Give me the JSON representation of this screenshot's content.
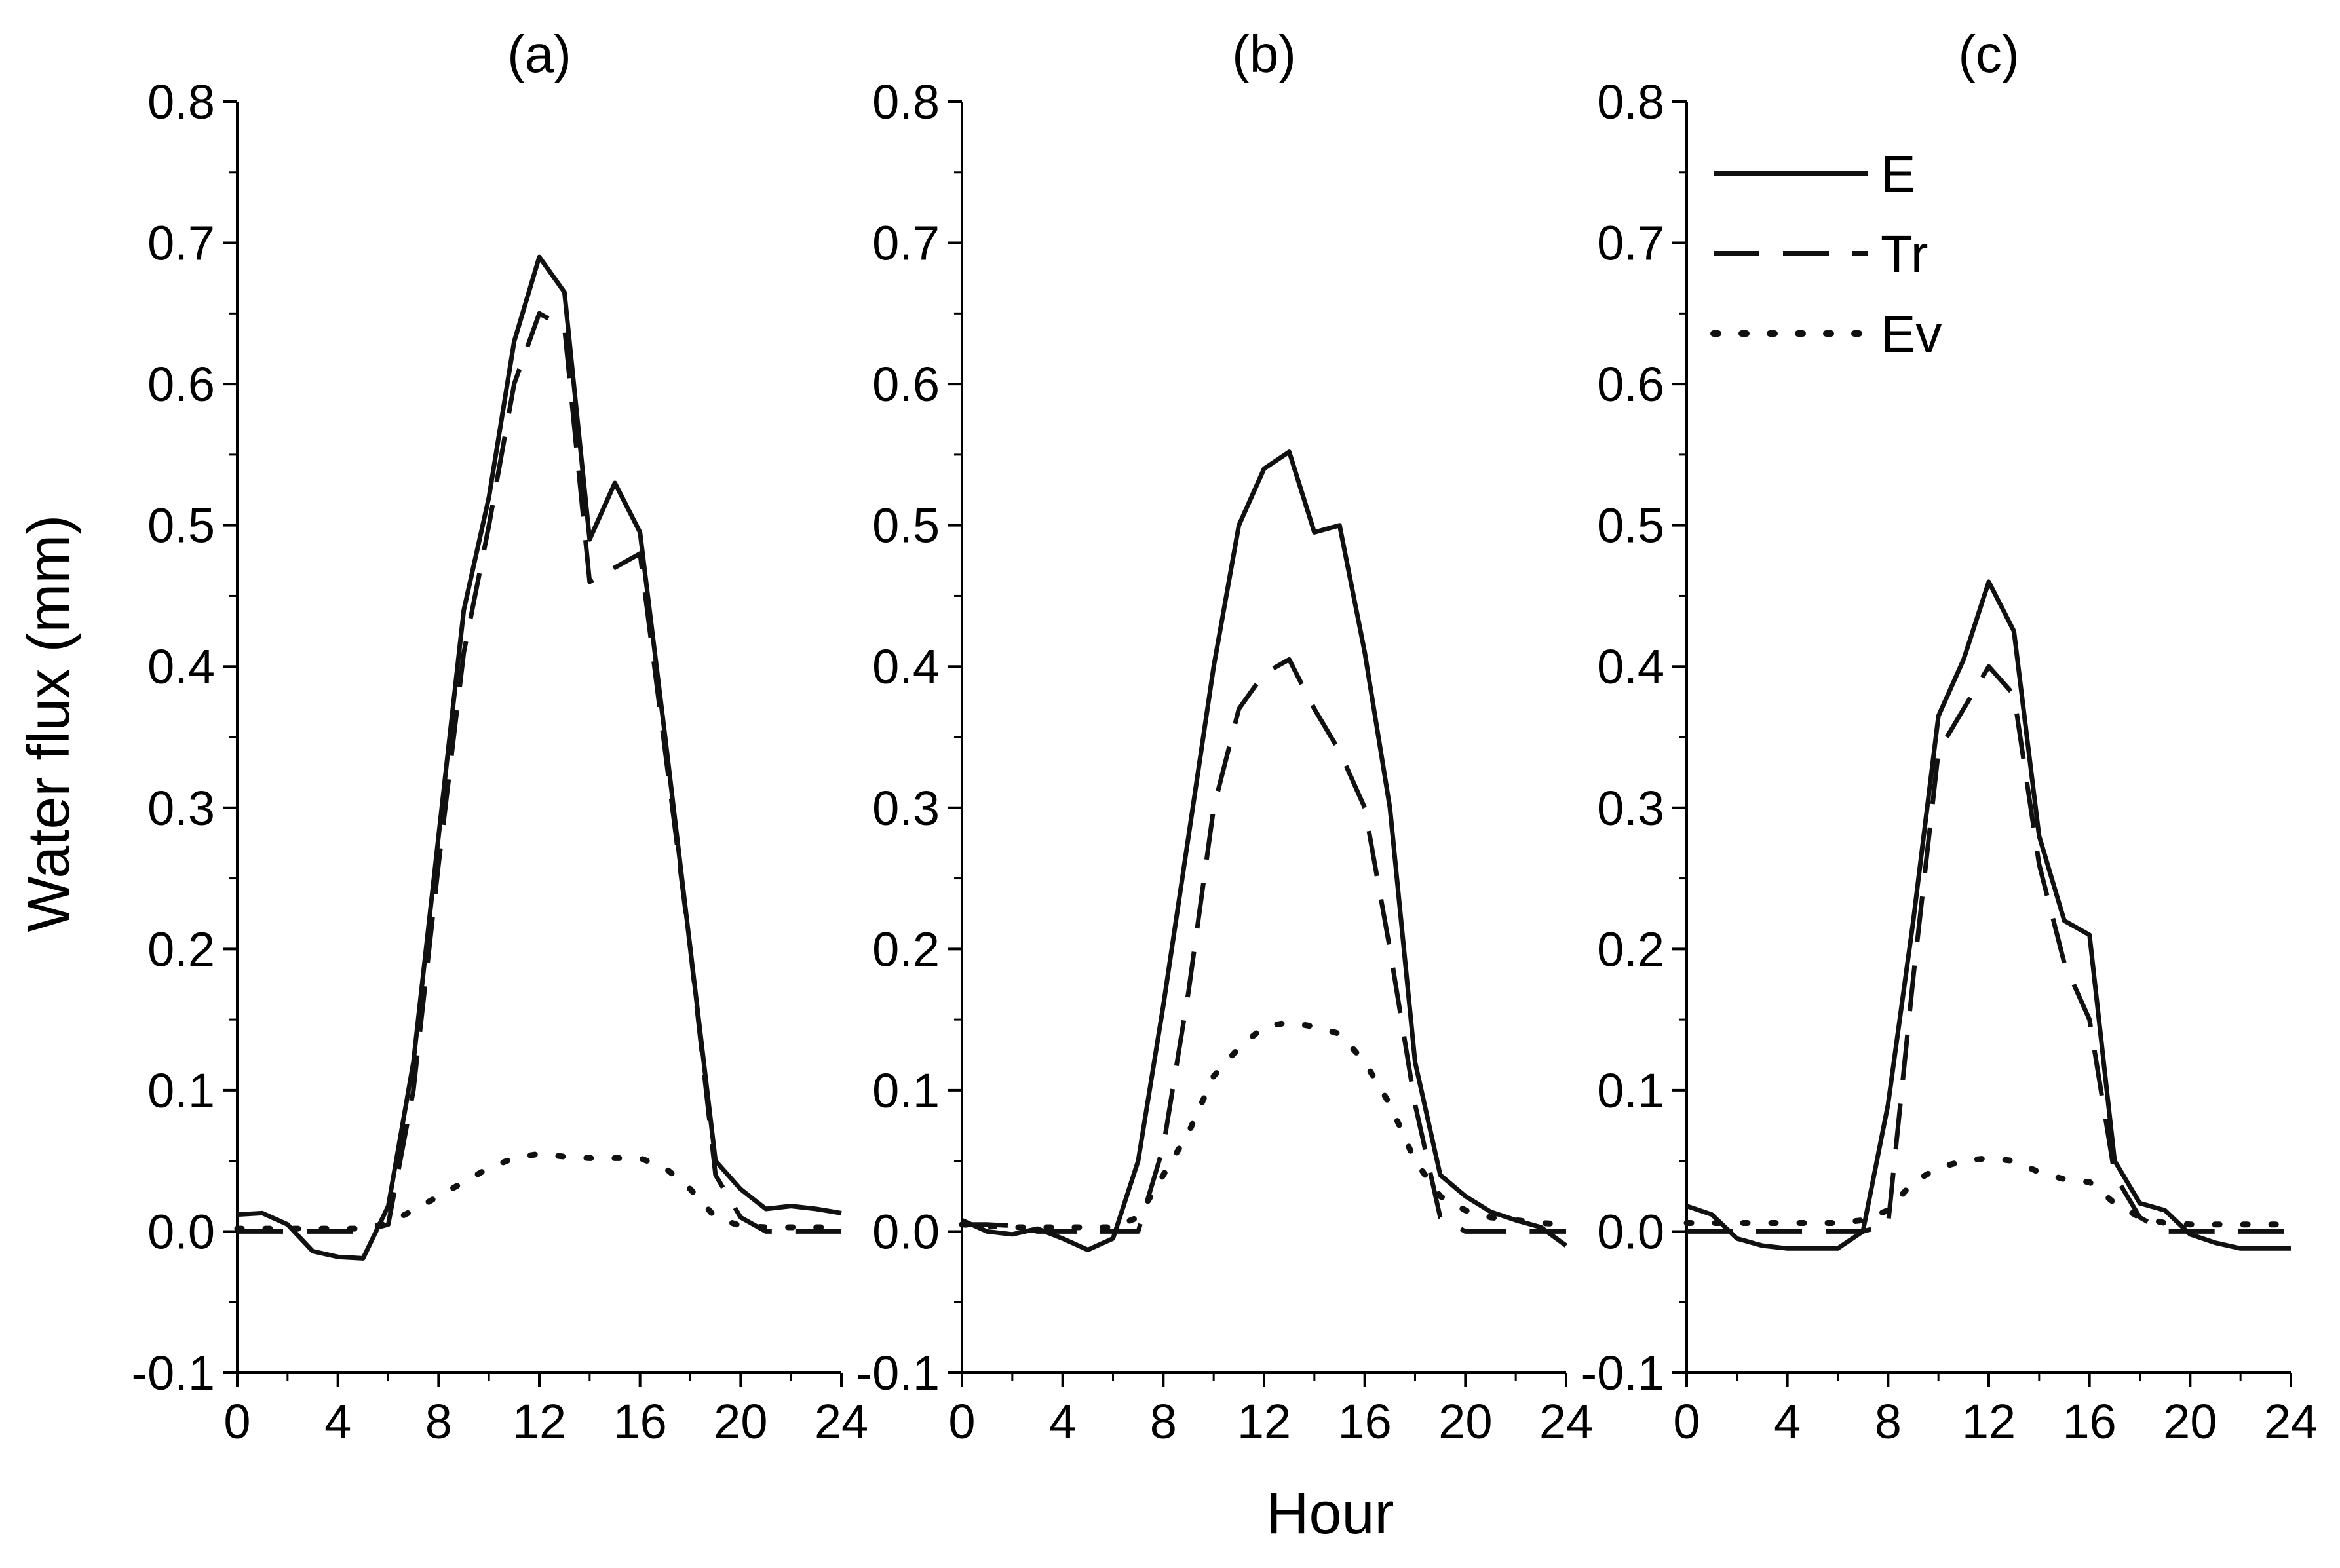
{
  "figure": {
    "xlabel": "Hour",
    "ylabel": "Water flux (mm)"
  },
  "legend": {
    "entries": [
      {
        "label": "E",
        "style": "solid"
      },
      {
        "label": "Tr",
        "style": "dashed"
      },
      {
        "label": "Ev",
        "style": "dotted"
      }
    ],
    "location": "top-left of panel (c)"
  },
  "chart_data": [
    {
      "type": "line",
      "title": "(a)",
      "xlabel": "Hour",
      "ylabel": "Water flux (mm)",
      "xlim": [
        0,
        24
      ],
      "ylim": [
        -0.1,
        0.8
      ],
      "xticks": [
        "0",
        "4",
        "8",
        "12",
        "16",
        "20",
        "24"
      ],
      "yticks": [
        "-0.1",
        "0.0",
        "0.1",
        "0.2",
        "0.3",
        "0.4",
        "0.5",
        "0.6",
        "0.7",
        "0.8"
      ],
      "series": [
        {
          "name": "E",
          "style": "solid",
          "x": [
            0,
            1,
            2,
            3,
            4,
            5,
            6,
            7,
            8,
            9,
            10,
            11,
            12,
            13,
            14,
            15,
            16,
            17,
            18,
            19,
            20,
            21,
            22,
            23,
            24
          ],
          "y": [
            0.012,
            0.013,
            0.005,
            -0.014,
            -0.018,
            -0.019,
            0.018,
            0.12,
            0.28,
            0.44,
            0.52,
            0.63,
            0.69,
            0.665,
            0.49,
            0.53,
            0.495,
            0.35,
            0.2,
            0.05,
            0.03,
            0.016,
            0.018,
            0.016,
            0.013
          ]
        },
        {
          "name": "Tr",
          "style": "dashed",
          "x": [
            0,
            1,
            2,
            3,
            4,
            5,
            6,
            7,
            8,
            9,
            10,
            11,
            12,
            13,
            14,
            15,
            16,
            17,
            18,
            19,
            20,
            21,
            22,
            23,
            24
          ],
          "y": [
            0.0,
            0.0,
            0.0,
            0.0,
            0.0,
            0.0,
            0.005,
            0.1,
            0.26,
            0.41,
            0.5,
            0.6,
            0.65,
            0.64,
            0.46,
            0.47,
            0.48,
            0.34,
            0.2,
            0.04,
            0.01,
            0.0,
            0.0,
            0.0,
            0.0
          ]
        },
        {
          "name": "Ev",
          "style": "dotted",
          "x": [
            0,
            1,
            2,
            3,
            4,
            5,
            6,
            7,
            8,
            9,
            10,
            11,
            12,
            13,
            14,
            15,
            16,
            17,
            18,
            19,
            20,
            21,
            22,
            23,
            24
          ],
          "y": [
            0.002,
            0.002,
            0.002,
            0.002,
            0.002,
            0.002,
            0.006,
            0.015,
            0.025,
            0.035,
            0.045,
            0.052,
            0.055,
            0.053,
            0.052,
            0.052,
            0.052,
            0.045,
            0.03,
            0.01,
            0.004,
            0.003,
            0.003,
            0.003,
            0.003
          ]
        }
      ]
    },
    {
      "type": "line",
      "title": "(b)",
      "xlabel": "Hour",
      "ylabel": "Water flux (mm)",
      "xlim": [
        0,
        24
      ],
      "ylim": [
        -0.1,
        0.8
      ],
      "xticks": [
        "0",
        "4",
        "8",
        "12",
        "16",
        "20",
        "24"
      ],
      "yticks": [
        "-0.1",
        "0.0",
        "0.1",
        "0.2",
        "0.3",
        "0.4",
        "0.5",
        "0.6",
        "0.7",
        "0.8"
      ],
      "series": [
        {
          "name": "E",
          "style": "solid",
          "x": [
            0,
            1,
            2,
            3,
            4,
            5,
            6,
            7,
            8,
            9,
            10,
            11,
            12,
            13,
            14,
            15,
            16,
            17,
            18,
            19,
            20,
            21,
            22,
            23,
            24
          ],
          "y": [
            0.008,
            0.0,
            -0.002,
            0.002,
            -0.005,
            -0.013,
            -0.005,
            0.05,
            0.16,
            0.28,
            0.4,
            0.5,
            0.54,
            0.552,
            0.495,
            0.5,
            0.41,
            0.3,
            0.12,
            0.04,
            0.025,
            0.014,
            0.008,
            0.003,
            -0.01
          ]
        },
        {
          "name": "Tr",
          "style": "dashed",
          "x": [
            0,
            1,
            2,
            3,
            4,
            5,
            6,
            7,
            8,
            9,
            10,
            11,
            12,
            13,
            14,
            15,
            16,
            17,
            18,
            19,
            20,
            21,
            22,
            23,
            24
          ],
          "y": [
            0.005,
            0.005,
            0.004,
            0.0,
            0.0,
            0.0,
            0.0,
            0.0,
            0.06,
            0.17,
            0.3,
            0.37,
            0.395,
            0.405,
            0.37,
            0.34,
            0.3,
            0.2,
            0.09,
            0.01,
            0.0,
            0.0,
            0.0,
            0.0,
            0.0
          ]
        },
        {
          "name": "Ev",
          "style": "dotted",
          "x": [
            0,
            1,
            2,
            3,
            4,
            5,
            6,
            7,
            8,
            9,
            10,
            11,
            12,
            13,
            14,
            15,
            16,
            17,
            18,
            19,
            20,
            21,
            22,
            23,
            24
          ],
          "y": [
            0.005,
            0.004,
            0.003,
            0.003,
            0.003,
            0.003,
            0.003,
            0.01,
            0.04,
            0.07,
            0.11,
            0.13,
            0.145,
            0.148,
            0.145,
            0.14,
            0.12,
            0.09,
            0.05,
            0.025,
            0.015,
            0.01,
            0.008,
            0.006,
            0.005
          ]
        }
      ]
    },
    {
      "type": "line",
      "title": "(c)",
      "xlabel": "Hour",
      "ylabel": "Water flux (mm)",
      "xlim": [
        0,
        24
      ],
      "ylim": [
        -0.1,
        0.8
      ],
      "xticks": [
        "0",
        "4",
        "8",
        "12",
        "16",
        "20",
        "24"
      ],
      "yticks": [
        "-0.1",
        "0.0",
        "0.1",
        "0.2",
        "0.3",
        "0.4",
        "0.5",
        "0.6",
        "0.7",
        "0.8"
      ],
      "series": [
        {
          "name": "E",
          "style": "solid",
          "x": [
            0,
            1,
            2,
            3,
            4,
            5,
            6,
            7,
            8,
            9,
            10,
            11,
            12,
            13,
            14,
            15,
            16,
            17,
            18,
            19,
            20,
            21,
            22,
            23,
            24
          ],
          "y": [
            0.018,
            0.012,
            -0.005,
            -0.01,
            -0.012,
            -0.012,
            -0.012,
            0.0,
            0.09,
            0.22,
            0.365,
            0.405,
            0.46,
            0.425,
            0.28,
            0.22,
            0.21,
            0.05,
            0.02,
            0.015,
            -0.002,
            -0.008,
            -0.012,
            -0.012,
            -0.012
          ]
        },
        {
          "name": "Tr",
          "style": "dashed",
          "x": [
            0,
            1,
            2,
            3,
            4,
            5,
            6,
            7,
            8,
            9,
            10,
            11,
            12,
            13,
            14,
            15,
            16,
            17,
            18,
            19,
            20,
            21,
            22,
            23,
            24
          ],
          "y": [
            0.0,
            0.0,
            0.0,
            0.0,
            0.0,
            0.0,
            0.0,
            0.0,
            0.005,
            0.18,
            0.34,
            0.37,
            0.4,
            0.38,
            0.26,
            0.19,
            0.15,
            0.04,
            0.01,
            0.0,
            0.0,
            0.0,
            0.0,
            0.0,
            0.0
          ]
        },
        {
          "name": "Ev",
          "style": "dotted",
          "x": [
            0,
            1,
            2,
            3,
            4,
            5,
            6,
            7,
            8,
            9,
            10,
            11,
            12,
            13,
            14,
            15,
            16,
            17,
            18,
            19,
            20,
            21,
            22,
            23,
            24
          ],
          "y": [
            0.006,
            0.006,
            0.006,
            0.006,
            0.006,
            0.006,
            0.006,
            0.008,
            0.015,
            0.035,
            0.045,
            0.05,
            0.052,
            0.05,
            0.042,
            0.037,
            0.035,
            0.02,
            0.01,
            0.006,
            0.005,
            0.005,
            0.005,
            0.005,
            0.005
          ]
        }
      ]
    }
  ]
}
